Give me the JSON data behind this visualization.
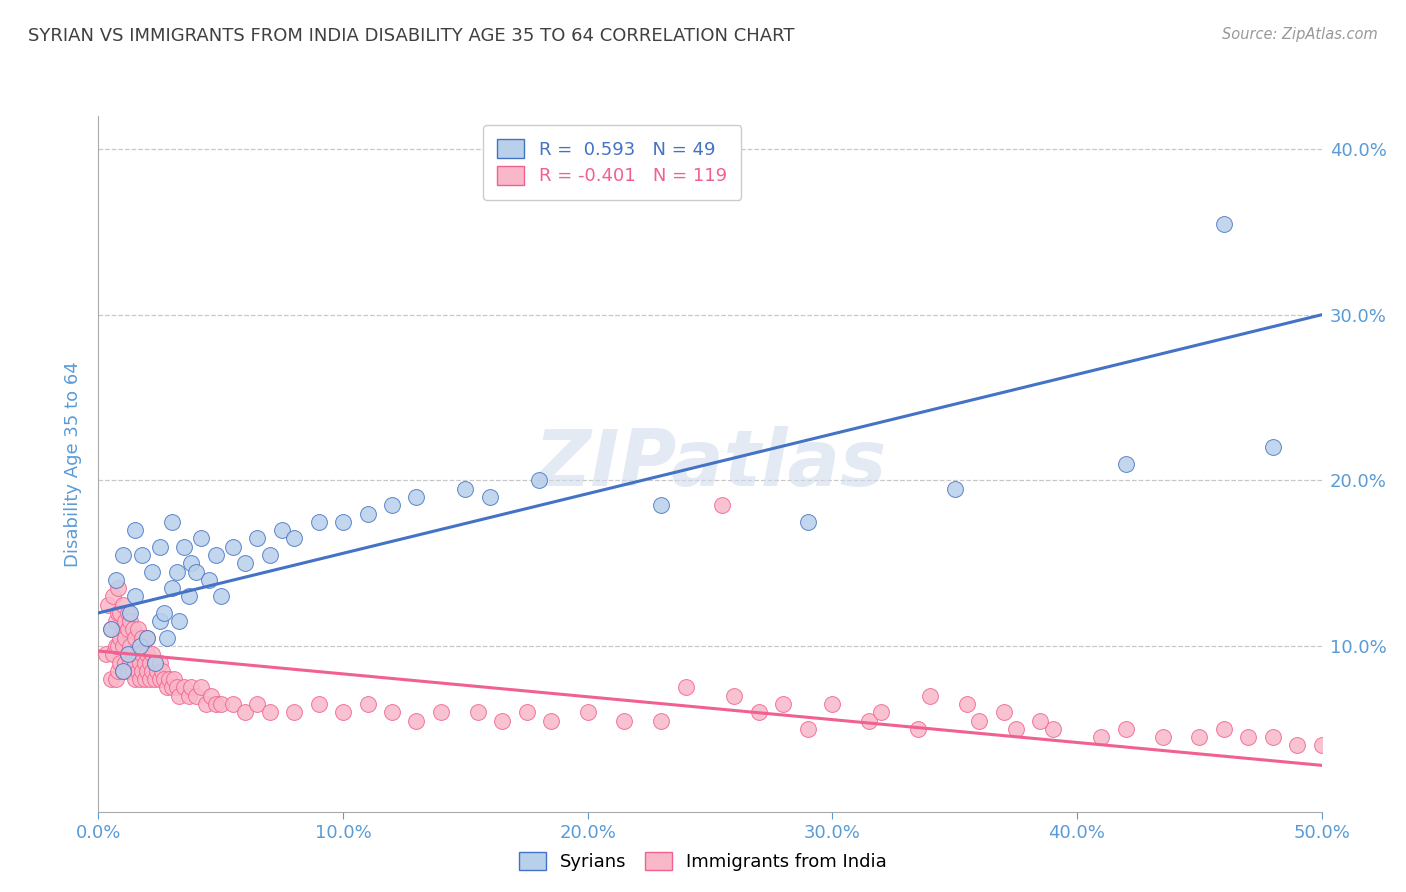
{
  "title": "SYRIAN VS IMMIGRANTS FROM INDIA DISABILITY AGE 35 TO 64 CORRELATION CHART",
  "source_text": "Source: ZipAtlas.com",
  "ylabel": "Disability Age 35 to 64",
  "watermark": "ZIPatlas",
  "xmin": 0.0,
  "xmax": 0.5,
  "ymin": 0.0,
  "ymax": 0.42,
  "yticks": [
    0.0,
    0.1,
    0.2,
    0.3,
    0.4
  ],
  "ytick_labels": [
    "",
    "10.0%",
    "20.0%",
    "30.0%",
    "40.0%"
  ],
  "xticks": [
    0.0,
    0.1,
    0.2,
    0.3,
    0.4,
    0.5
  ],
  "xtick_labels": [
    "0.0%",
    "10.0%",
    "20.0%",
    "30.0%",
    "40.0%",
    "50.0%"
  ],
  "blue_R": 0.593,
  "blue_N": 49,
  "pink_R": -0.401,
  "pink_N": 119,
  "blue_color": "#b8d0ea",
  "pink_color": "#f9b8c8",
  "blue_line_color": "#4472c4",
  "pink_line_color": "#f06090",
  "legend_blue_label": "Syrians",
  "legend_pink_label": "Immigrants from India",
  "title_color": "#404040",
  "tick_color": "#5b9bd5",
  "grid_color": "#c8c8c8",
  "background_color": "#ffffff",
  "blue_trend_x0": 0.0,
  "blue_trend_y0": 0.12,
  "blue_trend_x1": 0.5,
  "blue_trend_y1": 0.3,
  "pink_trend_x0": 0.0,
  "pink_trend_y0": 0.097,
  "pink_trend_x1": 0.5,
  "pink_trend_y1": 0.028,
  "blue_scatter_x": [
    0.005,
    0.007,
    0.01,
    0.01,
    0.012,
    0.013,
    0.015,
    0.015,
    0.017,
    0.018,
    0.02,
    0.022,
    0.023,
    0.025,
    0.025,
    0.027,
    0.028,
    0.03,
    0.03,
    0.032,
    0.033,
    0.035,
    0.037,
    0.038,
    0.04,
    0.042,
    0.045,
    0.048,
    0.05,
    0.055,
    0.06,
    0.065,
    0.07,
    0.075,
    0.08,
    0.09,
    0.1,
    0.11,
    0.12,
    0.13,
    0.15,
    0.16,
    0.18,
    0.23,
    0.29,
    0.35,
    0.42,
    0.46,
    0.48
  ],
  "blue_scatter_y": [
    0.11,
    0.14,
    0.085,
    0.155,
    0.095,
    0.12,
    0.13,
    0.17,
    0.1,
    0.155,
    0.105,
    0.145,
    0.09,
    0.115,
    0.16,
    0.12,
    0.105,
    0.135,
    0.175,
    0.145,
    0.115,
    0.16,
    0.13,
    0.15,
    0.145,
    0.165,
    0.14,
    0.155,
    0.13,
    0.16,
    0.15,
    0.165,
    0.155,
    0.17,
    0.165,
    0.175,
    0.175,
    0.18,
    0.185,
    0.19,
    0.195,
    0.19,
    0.2,
    0.185,
    0.175,
    0.195,
    0.21,
    0.355,
    0.22
  ],
  "pink_scatter_x": [
    0.003,
    0.004,
    0.005,
    0.005,
    0.006,
    0.006,
    0.007,
    0.007,
    0.007,
    0.008,
    0.008,
    0.008,
    0.008,
    0.009,
    0.009,
    0.009,
    0.01,
    0.01,
    0.01,
    0.01,
    0.011,
    0.011,
    0.011,
    0.012,
    0.012,
    0.012,
    0.012,
    0.013,
    0.013,
    0.013,
    0.014,
    0.014,
    0.014,
    0.015,
    0.015,
    0.015,
    0.016,
    0.016,
    0.016,
    0.017,
    0.017,
    0.018,
    0.018,
    0.018,
    0.019,
    0.019,
    0.02,
    0.02,
    0.02,
    0.021,
    0.021,
    0.022,
    0.022,
    0.023,
    0.023,
    0.024,
    0.025,
    0.025,
    0.026,
    0.027,
    0.028,
    0.029,
    0.03,
    0.031,
    0.032,
    0.033,
    0.035,
    0.037,
    0.038,
    0.04,
    0.042,
    0.044,
    0.046,
    0.048,
    0.05,
    0.055,
    0.06,
    0.065,
    0.07,
    0.08,
    0.09,
    0.1,
    0.11,
    0.12,
    0.13,
    0.14,
    0.155,
    0.165,
    0.175,
    0.185,
    0.2,
    0.215,
    0.23,
    0.255,
    0.27,
    0.29,
    0.315,
    0.335,
    0.36,
    0.375,
    0.39,
    0.41,
    0.42,
    0.435,
    0.45,
    0.46,
    0.47,
    0.48,
    0.49,
    0.5,
    0.24,
    0.26,
    0.28,
    0.3,
    0.32,
    0.34,
    0.355,
    0.37,
    0.385
  ],
  "pink_scatter_y": [
    0.095,
    0.125,
    0.08,
    0.11,
    0.095,
    0.13,
    0.08,
    0.1,
    0.115,
    0.085,
    0.1,
    0.12,
    0.135,
    0.09,
    0.105,
    0.12,
    0.085,
    0.1,
    0.11,
    0.125,
    0.09,
    0.105,
    0.115,
    0.085,
    0.095,
    0.11,
    0.12,
    0.09,
    0.1,
    0.115,
    0.085,
    0.095,
    0.11,
    0.08,
    0.09,
    0.105,
    0.085,
    0.095,
    0.11,
    0.08,
    0.09,
    0.085,
    0.095,
    0.105,
    0.08,
    0.09,
    0.085,
    0.095,
    0.105,
    0.08,
    0.09,
    0.085,
    0.095,
    0.08,
    0.09,
    0.085,
    0.08,
    0.09,
    0.085,
    0.08,
    0.075,
    0.08,
    0.075,
    0.08,
    0.075,
    0.07,
    0.075,
    0.07,
    0.075,
    0.07,
    0.075,
    0.065,
    0.07,
    0.065,
    0.065,
    0.065,
    0.06,
    0.065,
    0.06,
    0.06,
    0.065,
    0.06,
    0.065,
    0.06,
    0.055,
    0.06,
    0.06,
    0.055,
    0.06,
    0.055,
    0.06,
    0.055,
    0.055,
    0.185,
    0.06,
    0.05,
    0.055,
    0.05,
    0.055,
    0.05,
    0.05,
    0.045,
    0.05,
    0.045,
    0.045,
    0.05,
    0.045,
    0.045,
    0.04,
    0.04,
    0.075,
    0.07,
    0.065,
    0.065,
    0.06,
    0.07,
    0.065,
    0.06,
    0.055
  ]
}
